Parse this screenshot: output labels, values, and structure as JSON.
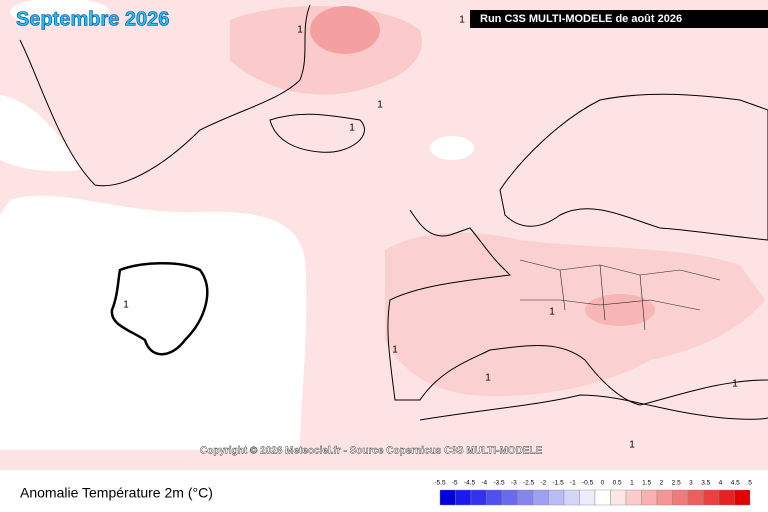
{
  "map": {
    "title": "Septembre 2026",
    "run_info": "Run C3S MULTI-MODELE de août 2026",
    "copyright": "Copyright © 2026 Meteociel.fr - Source Copernicus C3S MULTI-MODELE",
    "contour_labels": [
      "1",
      "1",
      "1",
      "1",
      "1",
      "1",
      "1",
      "1",
      "1",
      "1"
    ]
  },
  "legend": {
    "title": "Anomalie Température 2m (°C)",
    "ticks": [
      -5.5,
      -5,
      -4.5,
      -4,
      -3.5,
      -3,
      -2.5,
      -2,
      -1.5,
      -1,
      -0.5,
      0,
      0.5,
      1,
      1.5,
      2,
      2.5,
      3,
      3.5,
      4,
      4.5,
      5
    ],
    "colors": [
      "#0000dd",
      "#1a1aee",
      "#3333ee",
      "#5050ee",
      "#6a6aee",
      "#8585ee",
      "#a0a0f2",
      "#bbbbf5",
      "#d5d5f8",
      "#ececfc",
      "#ffffff",
      "#fde6e6",
      "#fbcccc",
      "#f8b0b0",
      "#f59595",
      "#f27a7a",
      "#ee5e5e",
      "#ea4040",
      "#e52222",
      "#e00000"
    ]
  }
}
